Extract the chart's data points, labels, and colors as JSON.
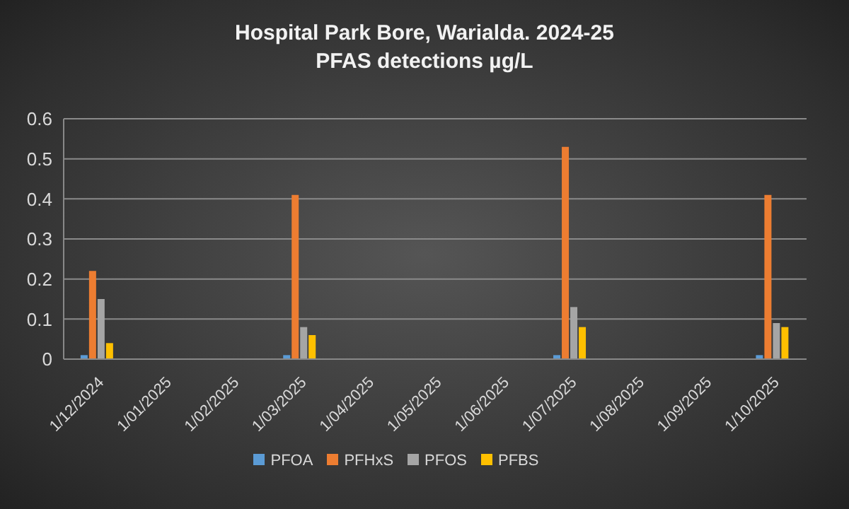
{
  "chart_data": {
    "type": "bar",
    "title": "Hospital Park Bore, Warialda. 2024-25",
    "subtitle": "PFAS detections µg/L",
    "categories": [
      "1/12/2024",
      "1/01/2025",
      "1/02/2025",
      "1/03/2025",
      "1/04/2025",
      "1/05/2025",
      "1/06/2025",
      "1/07/2025",
      "1/08/2025",
      "1/09/2025",
      "1/10/2025"
    ],
    "series": [
      {
        "name": "PFOA",
        "color": "#5b9bd5",
        "values": [
          0.01,
          null,
          null,
          0.01,
          null,
          null,
          null,
          0.01,
          null,
          null,
          0.01
        ]
      },
      {
        "name": "PFHxS",
        "color": "#ed7d31",
        "values": [
          0.22,
          null,
          null,
          0.41,
          null,
          null,
          null,
          0.53,
          null,
          null,
          0.41
        ]
      },
      {
        "name": "PFOS",
        "color": "#a5a5a5",
        "values": [
          0.15,
          null,
          null,
          0.08,
          null,
          null,
          null,
          0.13,
          null,
          null,
          0.09
        ]
      },
      {
        "name": "PFBS",
        "color": "#ffc000",
        "values": [
          0.04,
          null,
          null,
          0.06,
          null,
          null,
          null,
          0.08,
          null,
          null,
          0.08
        ]
      }
    ],
    "ylim": [
      0,
      0.6
    ],
    "yticks": [
      0,
      0.1,
      0.2,
      0.3,
      0.4,
      0.5,
      0.6
    ],
    "grid": "y",
    "legend": "bottom"
  }
}
